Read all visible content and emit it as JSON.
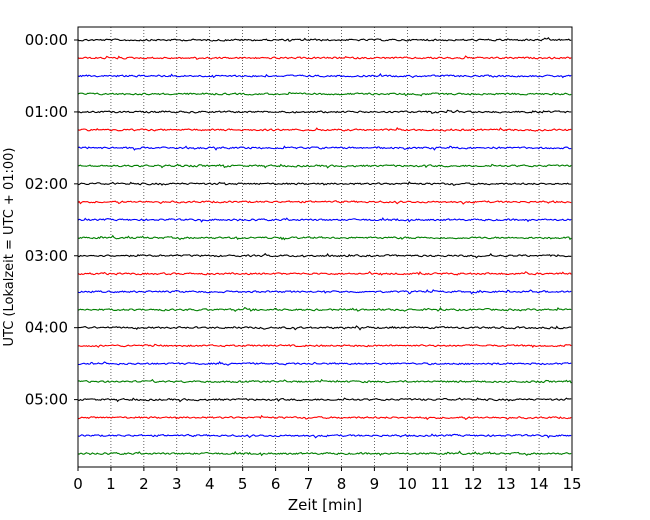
{
  "chart_data": {
    "type": "line",
    "title": "",
    "xlabel": "Zeit  [min]",
    "ylabel": "UTC (Lokalzeit = UTC + 01:00)",
    "xlim": [
      0,
      15
    ],
    "x_ticks": [
      "0",
      "1",
      "2",
      "3",
      "4",
      "5",
      "6",
      "7",
      "8",
      "9",
      "10",
      "11",
      "12",
      "13",
      "14",
      "15"
    ],
    "y_tick_labels": [
      "00:00",
      "01:00",
      "02:00",
      "03:00",
      "04:00",
      "05:00"
    ],
    "row_interval_minutes": 15,
    "row_count": 24,
    "trace_colors": [
      "#000000",
      "#ff0000",
      "#0000ff",
      "#007f00"
    ],
    "vertical_grid": true,
    "grid_style": "dotted"
  }
}
